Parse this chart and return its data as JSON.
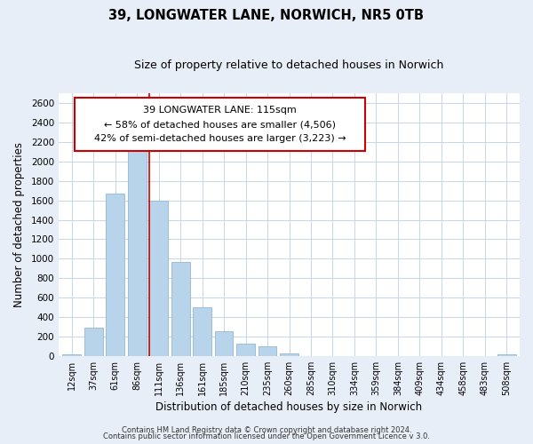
{
  "title": "39, LONGWATER LANE, NORWICH, NR5 0TB",
  "subtitle": "Size of property relative to detached houses in Norwich",
  "xlabel": "Distribution of detached houses by size in Norwich",
  "ylabel": "Number of detached properties",
  "bar_labels": [
    "12sqm",
    "37sqm",
    "61sqm",
    "86sqm",
    "111sqm",
    "136sqm",
    "161sqm",
    "185sqm",
    "210sqm",
    "235sqm",
    "260sqm",
    "285sqm",
    "310sqm",
    "334sqm",
    "359sqm",
    "384sqm",
    "409sqm",
    "434sqm",
    "458sqm",
    "483sqm",
    "508sqm"
  ],
  "bar_values": [
    20,
    295,
    1670,
    2140,
    1600,
    965,
    505,
    250,
    125,
    95,
    30,
    0,
    0,
    0,
    0,
    0,
    0,
    0,
    0,
    0,
    20
  ],
  "bar_color": "#b8d4eb",
  "bar_edge_color": "#90b8d8",
  "vline_color": "#cc0000",
  "vline_x_index": 4,
  "annotation_line1": "39 LONGWATER LANE: 115sqm",
  "annotation_line2": "← 58% of detached houses are smaller (4,506)",
  "annotation_line3": "42% of semi-detached houses are larger (3,223) →",
  "box_edge_color": "#cc0000",
  "box_face_color": "#ffffff",
  "ylim": [
    0,
    2700
  ],
  "yticks": [
    0,
    200,
    400,
    600,
    800,
    1000,
    1200,
    1400,
    1600,
    1800,
    2000,
    2200,
    2400,
    2600
  ],
  "footer_line1": "Contains HM Land Registry data © Crown copyright and database right 2024.",
  "footer_line2": "Contains public sector information licensed under the Open Government Licence v 3.0.",
  "bg_color": "#e8eef7",
  "plot_bg_color": "#ffffff",
  "grid_color": "#c8d4e8"
}
